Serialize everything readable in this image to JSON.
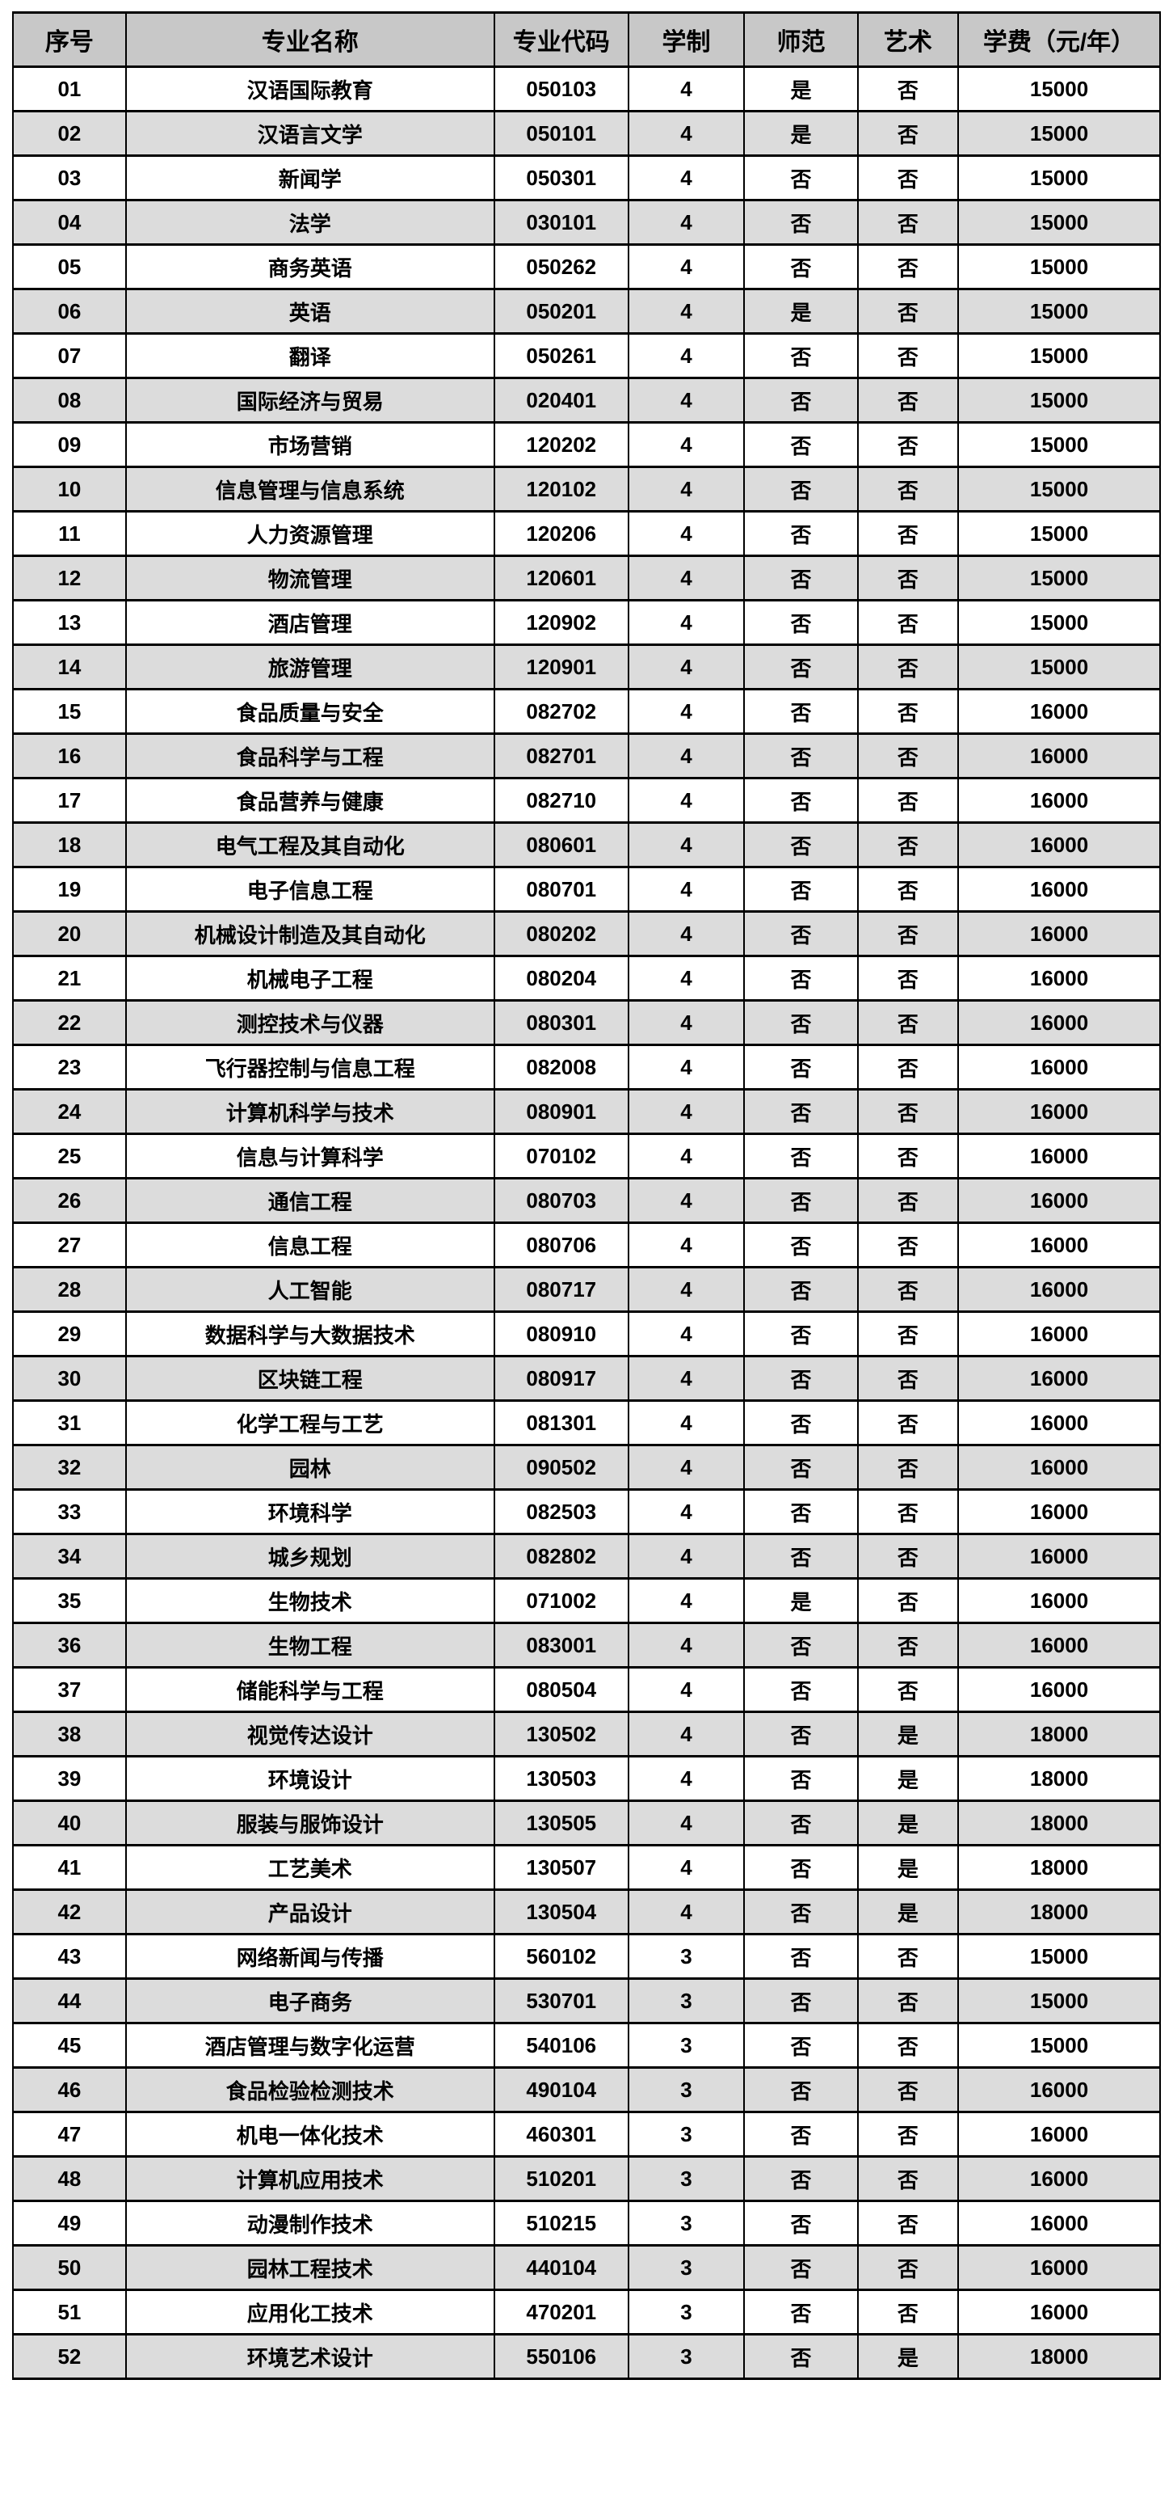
{
  "colors": {
    "header_bg": "#c8c8c8",
    "stripe_bg": "#dcdcdc",
    "border": "#000000",
    "text": "#000000",
    "page_bg": "#ffffff"
  },
  "table": {
    "columns": [
      "序号",
      "专业名称",
      "专业代码",
      "学制",
      "师范",
      "艺术",
      "学费（元/年）"
    ],
    "rows": [
      [
        "01",
        "汉语国际教育",
        "050103",
        "4",
        "是",
        "否",
        "15000"
      ],
      [
        "02",
        "汉语言文学",
        "050101",
        "4",
        "是",
        "否",
        "15000"
      ],
      [
        "03",
        "新闻学",
        "050301",
        "4",
        "否",
        "否",
        "15000"
      ],
      [
        "04",
        "法学",
        "030101",
        "4",
        "否",
        "否",
        "15000"
      ],
      [
        "05",
        "商务英语",
        "050262",
        "4",
        "否",
        "否",
        "15000"
      ],
      [
        "06",
        "英语",
        "050201",
        "4",
        "是",
        "否",
        "15000"
      ],
      [
        "07",
        "翻译",
        "050261",
        "4",
        "否",
        "否",
        "15000"
      ],
      [
        "08",
        "国际经济与贸易",
        "020401",
        "4",
        "否",
        "否",
        "15000"
      ],
      [
        "09",
        "市场营销",
        "120202",
        "4",
        "否",
        "否",
        "15000"
      ],
      [
        "10",
        "信息管理与信息系统",
        "120102",
        "4",
        "否",
        "否",
        "15000"
      ],
      [
        "11",
        "人力资源管理",
        "120206",
        "4",
        "否",
        "否",
        "15000"
      ],
      [
        "12",
        "物流管理",
        "120601",
        "4",
        "否",
        "否",
        "15000"
      ],
      [
        "13",
        "酒店管理",
        "120902",
        "4",
        "否",
        "否",
        "15000"
      ],
      [
        "14",
        "旅游管理",
        "120901",
        "4",
        "否",
        "否",
        "15000"
      ],
      [
        "15",
        "食品质量与安全",
        "082702",
        "4",
        "否",
        "否",
        "16000"
      ],
      [
        "16",
        "食品科学与工程",
        "082701",
        "4",
        "否",
        "否",
        "16000"
      ],
      [
        "17",
        "食品营养与健康",
        "082710",
        "4",
        "否",
        "否",
        "16000"
      ],
      [
        "18",
        "电气工程及其自动化",
        "080601",
        "4",
        "否",
        "否",
        "16000"
      ],
      [
        "19",
        "电子信息工程",
        "080701",
        "4",
        "否",
        "否",
        "16000"
      ],
      [
        "20",
        "机械设计制造及其自动化",
        "080202",
        "4",
        "否",
        "否",
        "16000"
      ],
      [
        "21",
        "机械电子工程",
        "080204",
        "4",
        "否",
        "否",
        "16000"
      ],
      [
        "22",
        "测控技术与仪器",
        "080301",
        "4",
        "否",
        "否",
        "16000"
      ],
      [
        "23",
        "飞行器控制与信息工程",
        "082008",
        "4",
        "否",
        "否",
        "16000"
      ],
      [
        "24",
        "计算机科学与技术",
        "080901",
        "4",
        "否",
        "否",
        "16000"
      ],
      [
        "25",
        "信息与计算科学",
        "070102",
        "4",
        "否",
        "否",
        "16000"
      ],
      [
        "26",
        "通信工程",
        "080703",
        "4",
        "否",
        "否",
        "16000"
      ],
      [
        "27",
        "信息工程",
        "080706",
        "4",
        "否",
        "否",
        "16000"
      ],
      [
        "28",
        "人工智能",
        "080717",
        "4",
        "否",
        "否",
        "16000"
      ],
      [
        "29",
        "数据科学与大数据技术",
        "080910",
        "4",
        "否",
        "否",
        "16000"
      ],
      [
        "30",
        "区块链工程",
        "080917",
        "4",
        "否",
        "否",
        "16000"
      ],
      [
        "31",
        "化学工程与工艺",
        "081301",
        "4",
        "否",
        "否",
        "16000"
      ],
      [
        "32",
        "园林",
        "090502",
        "4",
        "否",
        "否",
        "16000"
      ],
      [
        "33",
        "环境科学",
        "082503",
        "4",
        "否",
        "否",
        "16000"
      ],
      [
        "34",
        "城乡规划",
        "082802",
        "4",
        "否",
        "否",
        "16000"
      ],
      [
        "35",
        "生物技术",
        "071002",
        "4",
        "是",
        "否",
        "16000"
      ],
      [
        "36",
        "生物工程",
        "083001",
        "4",
        "否",
        "否",
        "16000"
      ],
      [
        "37",
        "储能科学与工程",
        "080504",
        "4",
        "否",
        "否",
        "16000"
      ],
      [
        "38",
        "视觉传达设计",
        "130502",
        "4",
        "否",
        "是",
        "18000"
      ],
      [
        "39",
        "环境设计",
        "130503",
        "4",
        "否",
        "是",
        "18000"
      ],
      [
        "40",
        "服装与服饰设计",
        "130505",
        "4",
        "否",
        "是",
        "18000"
      ],
      [
        "41",
        "工艺美术",
        "130507",
        "4",
        "否",
        "是",
        "18000"
      ],
      [
        "42",
        "产品设计",
        "130504",
        "4",
        "否",
        "是",
        "18000"
      ],
      [
        "43",
        "网络新闻与传播",
        "560102",
        "3",
        "否",
        "否",
        "15000"
      ],
      [
        "44",
        "电子商务",
        "530701",
        "3",
        "否",
        "否",
        "15000"
      ],
      [
        "45",
        "酒店管理与数字化运营",
        "540106",
        "3",
        "否",
        "否",
        "15000"
      ],
      [
        "46",
        "食品检验检测技术",
        "490104",
        "3",
        "否",
        "否",
        "16000"
      ],
      [
        "47",
        "机电一体化技术",
        "460301",
        "3",
        "否",
        "否",
        "16000"
      ],
      [
        "48",
        "计算机应用技术",
        "510201",
        "3",
        "否",
        "否",
        "16000"
      ],
      [
        "49",
        "动漫制作技术",
        "510215",
        "3",
        "否",
        "否",
        "16000"
      ],
      [
        "50",
        "园林工程技术",
        "440104",
        "3",
        "否",
        "否",
        "16000"
      ],
      [
        "51",
        "应用化工技术",
        "470201",
        "3",
        "否",
        "否",
        "16000"
      ],
      [
        "52",
        "环境艺术设计",
        "550106",
        "3",
        "否",
        "是",
        "18000"
      ]
    ]
  }
}
